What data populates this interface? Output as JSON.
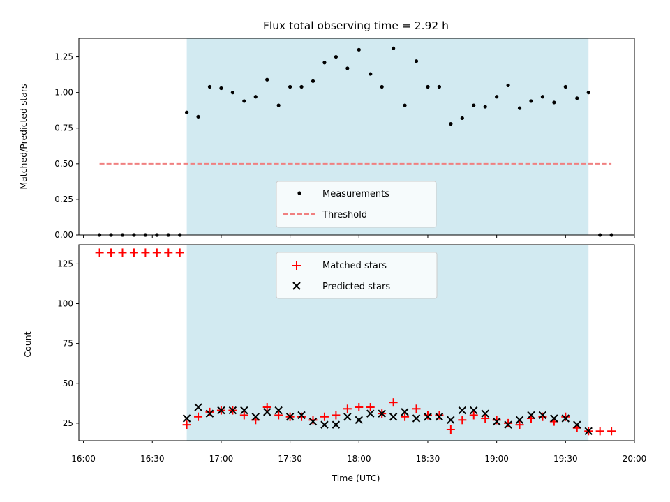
{
  "chart_data": [
    {
      "type": "scatter",
      "title": "Flux total observing time = 2.92 h",
      "xlabel": "",
      "ylabel": "Matched/Predicted stars",
      "ylim": [
        0,
        1.38
      ],
      "yticks": [
        "0.00",
        "0.25",
        "0.50",
        "0.75",
        "1.00",
        "1.25"
      ],
      "xlim_minutes": [
        958,
        1200
      ],
      "observing_window_minutes": [
        1005,
        1180
      ],
      "window_color": "#add8e6",
      "series": [
        {
          "name": "Measurements",
          "color": "#000000",
          "marker": "dot",
          "x_minutes": [
            967,
            972,
            977,
            982,
            987,
            992,
            997,
            1002,
            1005,
            1010,
            1015,
            1020,
            1025,
            1030,
            1035,
            1040,
            1045,
            1050,
            1055,
            1060,
            1065,
            1070,
            1075,
            1080,
            1085,
            1090,
            1095,
            1100,
            1105,
            1110,
            1115,
            1120,
            1125,
            1130,
            1135,
            1140,
            1145,
            1150,
            1155,
            1160,
            1165,
            1170,
            1175,
            1180,
            1185,
            1190
          ],
          "y": [
            0,
            0,
            0,
            0,
            0,
            0,
            0,
            0,
            0.86,
            0.83,
            1.04,
            1.03,
            1.0,
            0.94,
            0.97,
            1.09,
            0.91,
            1.04,
            1.04,
            1.08,
            1.21,
            1.25,
            1.17,
            1.3,
            1.13,
            1.04,
            1.31,
            0.91,
            1.22,
            1.04,
            1.04,
            0.78,
            0.82,
            0.91,
            0.9,
            0.97,
            1.05,
            0.89,
            0.94,
            0.97,
            0.93,
            1.04,
            0.96,
            1.0,
            0,
            0
          ]
        },
        {
          "name": "Threshold",
          "color": "#f08080",
          "style": "dashed",
          "x_minutes": [
            967,
            1190
          ],
          "y": [
            0.5,
            0.5
          ]
        }
      ],
      "legend": {
        "placement": "lower center",
        "entries": [
          "Measurements",
          "Threshold"
        ]
      }
    },
    {
      "type": "scatter",
      "title": "",
      "xlabel": "Time (UTC)",
      "ylabel": "Count",
      "ylim": [
        14,
        137
      ],
      "yticks": [
        "25",
        "50",
        "75",
        "100",
        "125"
      ],
      "xticks": [
        "16:00",
        "16:30",
        "17:00",
        "17:30",
        "18:00",
        "18:30",
        "19:00",
        "19:30",
        "20:00"
      ],
      "xlim_minutes": [
        958,
        1200
      ],
      "observing_window_minutes": [
        1005,
        1180
      ],
      "series": [
        {
          "name": "Matched stars",
          "color": "#ff0000",
          "marker": "plus",
          "x_minutes": [
            967,
            972,
            977,
            982,
            987,
            992,
            997,
            1002,
            1005,
            1010,
            1015,
            1020,
            1025,
            1030,
            1035,
            1040,
            1045,
            1050,
            1055,
            1060,
            1065,
            1070,
            1075,
            1080,
            1085,
            1090,
            1095,
            1100,
            1105,
            1110,
            1115,
            1120,
            1125,
            1130,
            1135,
            1140,
            1145,
            1150,
            1155,
            1160,
            1165,
            1170,
            1175,
            1180,
            1185,
            1190
          ],
          "y": [
            132,
            132,
            132,
            132,
            132,
            132,
            132,
            132,
            24,
            29,
            32,
            33,
            33,
            30,
            27,
            35,
            30,
            29,
            29,
            27,
            29,
            30,
            34,
            35,
            35,
            31,
            38,
            29,
            34,
            30,
            30,
            21,
            27,
            30,
            28,
            27,
            25,
            24,
            28,
            29,
            26,
            29,
            22,
            20,
            20,
            20
          ]
        },
        {
          "name": "Predicted stars",
          "color": "#000000",
          "marker": "x",
          "x_minutes": [
            1005,
            1010,
            1015,
            1020,
            1025,
            1030,
            1035,
            1040,
            1045,
            1050,
            1055,
            1060,
            1065,
            1070,
            1075,
            1080,
            1085,
            1090,
            1095,
            1100,
            1105,
            1110,
            1115,
            1120,
            1125,
            1130,
            1135,
            1140,
            1145,
            1150,
            1155,
            1160,
            1165,
            1170,
            1175,
            1180
          ],
          "y": [
            28,
            35,
            31,
            33,
            33,
            33,
            29,
            32,
            33,
            29,
            30,
            26,
            24,
            24,
            29,
            27,
            31,
            31,
            29,
            32,
            28,
            29,
            29,
            27,
            33,
            33,
            31,
            26,
            24,
            27,
            30,
            30,
            28,
            28,
            24,
            20
          ]
        }
      ],
      "legend": {
        "placement": "upper center",
        "entries": [
          "Matched stars",
          "Predicted stars"
        ]
      }
    }
  ]
}
